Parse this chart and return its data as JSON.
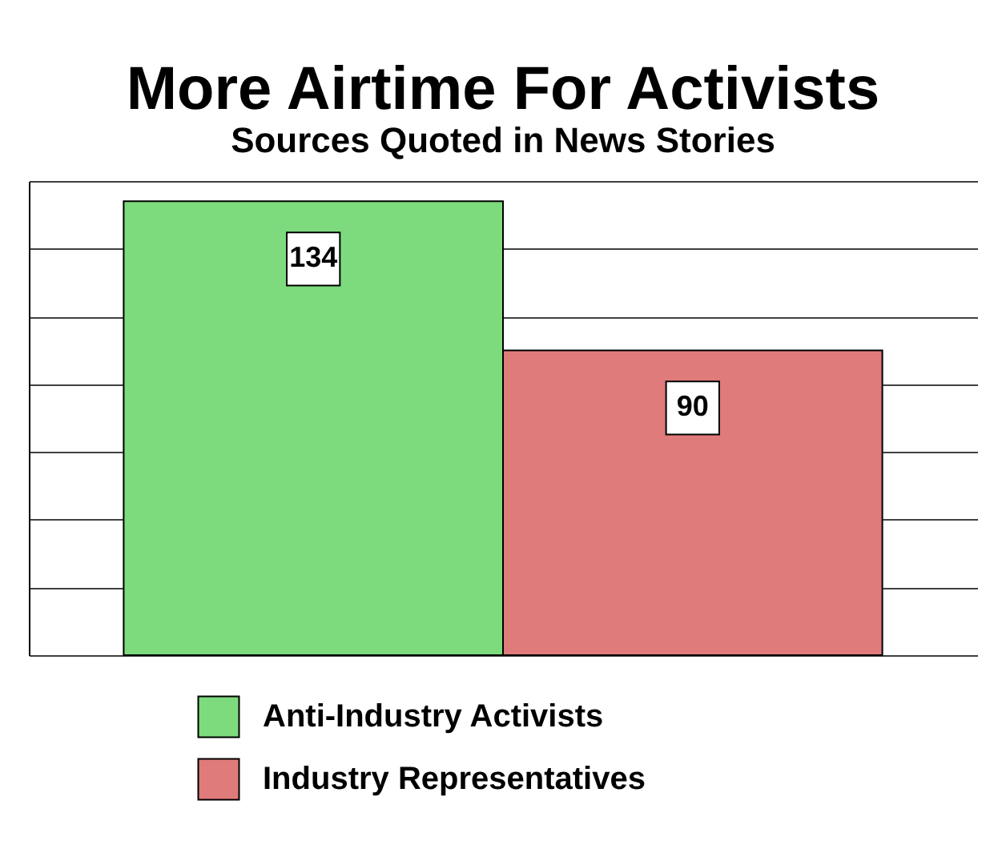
{
  "chart_data": {
    "type": "bar",
    "title": "More Airtime For Activists",
    "subtitle": "Sources Quoted in News Stories",
    "categories": [
      null,
      null
    ],
    "series": [
      {
        "name": "Anti-Industry Activists",
        "color": "#7ddb7d",
        "values": [
          134,
          null
        ]
      },
      {
        "name": "Industry Representatives",
        "color": "#e07b7b",
        "values": [
          null,
          90
        ]
      }
    ],
    "ylim": [
      0,
      140
    ],
    "yticks": [
      {
        "value": 0,
        "label": null
      },
      {
        "value": 20,
        "label": null
      },
      {
        "value": 40,
        "label": null
      },
      {
        "value": 60,
        "label": null
      },
      {
        "value": 80,
        "label": null
      },
      {
        "value": 100,
        "label": null
      },
      {
        "value": 120,
        "label": null
      },
      {
        "value": 140,
        "label": null
      }
    ],
    "stacked": true,
    "grid": "y",
    "legend": "bottom",
    "tick_labels": false,
    "data_labels": true
  }
}
